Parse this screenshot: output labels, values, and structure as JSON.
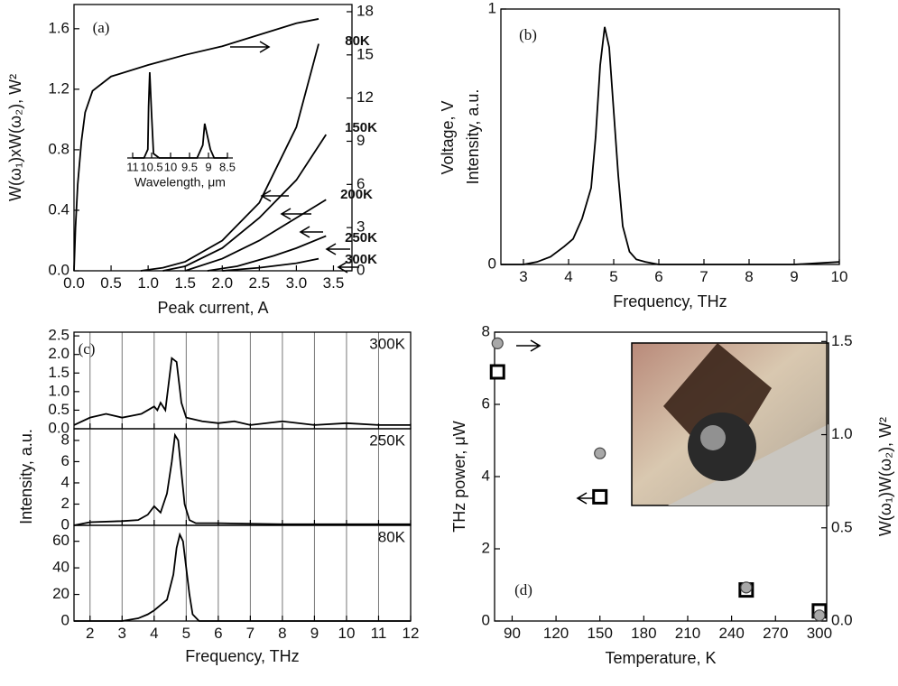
{
  "chart_data": [
    {
      "type": "line",
      "label": "(a)",
      "xlabel": "Peak current, A",
      "ylabel": "W(ω₁)xW(ω₂), W²",
      "y2label": "Voltage, V",
      "xlim": [
        0,
        3.75
      ],
      "xticks": [
        {
          "value": 0,
          "label": "0.0"
        },
        0.5,
        {
          "value": 1,
          "label": "1.0"
        },
        1.5,
        {
          "value": 2,
          "label": "2.0"
        },
        2.5,
        {
          "value": 3,
          "label": "3.0"
        },
        3.5
      ],
      "ylim": [
        0,
        1.76
      ],
      "yticks": [
        {
          "value": 0,
          "label": "0.0"
        },
        0.4,
        0.8,
        1.2,
        1.6
      ],
      "y2lim": [
        0,
        18.5
      ],
      "y2ticks": [
        0,
        3,
        6,
        9,
        12,
        15,
        18
      ],
      "series": [
        {
          "axis": "y2",
          "x": [
            0,
            0.02,
            0.05,
            0.1,
            0.15,
            0.25,
            0.5,
            1,
            1.5,
            2,
            2.5,
            3,
            3.3
          ],
          "values": [
            0,
            3,
            6,
            9,
            11,
            12.5,
            13.5,
            14.3,
            15,
            15.6,
            16.4,
            17.2,
            17.5
          ]
        },
        {
          "name": "80K",
          "x": [
            0.9,
            1.2,
            1.5,
            2.0,
            2.5,
            3.0,
            3.3
          ],
          "values": [
            0,
            0.02,
            0.06,
            0.2,
            0.45,
            0.95,
            1.5
          ]
        },
        {
          "name": "150K",
          "x": [
            1.2,
            1.5,
            2.0,
            2.5,
            3.0,
            3.4
          ],
          "values": [
            0,
            0.03,
            0.15,
            0.35,
            0.6,
            0.9
          ]
        },
        {
          "name": "200K",
          "x": [
            1.5,
            2.0,
            2.5,
            3.0,
            3.4
          ],
          "values": [
            0,
            0.08,
            0.2,
            0.35,
            0.47
          ]
        },
        {
          "name": "250K",
          "x": [
            1.8,
            2.2,
            2.7,
            3.0,
            3.4
          ],
          "values": [
            0,
            0.03,
            0.1,
            0.15,
            0.23
          ]
        },
        {
          "name": "300K",
          "x": [
            2.0,
            2.5,
            3.0,
            3.3
          ],
          "values": [
            0,
            0.02,
            0.05,
            0.08
          ]
        }
      ]
    },
    {
      "type": "line",
      "xlabel": "Wavelength, μm",
      "xlim": [
        11,
        8.5
      ],
      "xticks": [
        11,
        10.5,
        10,
        9.5,
        9,
        8.5
      ],
      "ylim": [
        0,
        1
      ],
      "x": [
        11,
        10.7,
        10.6,
        10.58,
        10.55,
        10.52,
        10.5,
        10.45,
        10.3,
        9.3,
        9.15,
        9.1,
        9.05,
        9.0,
        8.95,
        8.85,
        8.5
      ],
      "values": [
        0,
        0,
        0.1,
        0.6,
        1,
        0.7,
        0.5,
        0.05,
        0,
        0,
        0.15,
        0.4,
        0.3,
        0.2,
        0.1,
        0,
        0
      ]
    },
    {
      "type": "line",
      "label": "(b)",
      "xlabel": "Frequency, THz",
      "ylabel": "Intensity, a.u.",
      "xlim": [
        2.5,
        10
      ],
      "xticks": [
        3,
        4,
        5,
        6,
        7,
        8,
        9,
        10
      ],
      "ylim": [
        0,
        1
      ],
      "yticks": [
        0,
        1
      ],
      "x": [
        2.5,
        3,
        3.3,
        3.6,
        3.9,
        4.1,
        4.3,
        4.5,
        4.6,
        4.7,
        4.8,
        4.9,
        5.0,
        5.1,
        5.2,
        5.35,
        5.5,
        5.7,
        6,
        7,
        8,
        9,
        10
      ],
      "values": [
        0,
        0,
        0.01,
        0.03,
        0.07,
        0.1,
        0.18,
        0.3,
        0.5,
        0.78,
        0.93,
        0.85,
        0.6,
        0.35,
        0.15,
        0.05,
        0.02,
        0.01,
        0,
        0,
        0,
        0,
        0.01
      ]
    },
    {
      "type": "line",
      "label": "(c)",
      "title": "300K",
      "xlim": [
        1.5,
        12
      ],
      "xgrid": true,
      "ylim": [
        0,
        2.6
      ],
      "yticks": [
        {
          "value": 0,
          "label": "0.0"
        },
        0.5,
        {
          "value": 1,
          "label": "1.0"
        },
        1.5,
        {
          "value": 2,
          "label": "2.0"
        },
        2.5
      ],
      "x": [
        1.5,
        2,
        2.5,
        3,
        3.3,
        3.6,
        3.8,
        4,
        4.1,
        4.2,
        4.35,
        4.45,
        4.55,
        4.7,
        4.85,
        5,
        5.5,
        6,
        6.5,
        7,
        8,
        9,
        10,
        11,
        12
      ],
      "values": [
        0.1,
        0.3,
        0.4,
        0.3,
        0.35,
        0.4,
        0.5,
        0.6,
        0.5,
        0.7,
        0.5,
        1.2,
        1.9,
        1.8,
        0.7,
        0.3,
        0.2,
        0.15,
        0.2,
        0.1,
        0.2,
        0.1,
        0.15,
        0.1,
        0.1
      ]
    },
    {
      "type": "line",
      "title": "250K",
      "ylabel": "Intensity, a.u.",
      "xlim": [
        1.5,
        12
      ],
      "xgrid": true,
      "ylim": [
        0,
        9.1
      ],
      "yticks": [
        0,
        2,
        4,
        6,
        8
      ],
      "x": [
        1.5,
        2,
        3,
        3.5,
        3.8,
        4,
        4.2,
        4.4,
        4.55,
        4.65,
        4.75,
        4.85,
        4.95,
        5.1,
        5.3,
        6,
        8,
        10,
        12
      ],
      "values": [
        0,
        0.3,
        0.4,
        0.5,
        1.0,
        1.8,
        1.2,
        3,
        6,
        8.5,
        8,
        5,
        2,
        0.5,
        0.2,
        0.2,
        0.1,
        0.1,
        0.1
      ]
    },
    {
      "type": "line",
      "title": "80K",
      "xlabel": "Frequency, THz",
      "xlim": [
        1.5,
        12
      ],
      "xgrid": true,
      "xticks": [
        2,
        3,
        4,
        5,
        6,
        7,
        8,
        9,
        10,
        11,
        12
      ],
      "ylim": [
        0,
        72
      ],
      "yticks": [
        0,
        20,
        40,
        60
      ],
      "x": [
        1.5,
        3,
        3.5,
        3.8,
        4,
        4.2,
        4.4,
        4.6,
        4.7,
        4.8,
        4.9,
        5.0,
        5.1,
        5.2,
        5.4,
        6,
        12
      ],
      "values": [
        0,
        0,
        2,
        5,
        8,
        12,
        16,
        35,
        55,
        65,
        60,
        40,
        20,
        5,
        0,
        0,
        0
      ]
    },
    {
      "type": "scatter",
      "label": "(d)",
      "xlabel": "Temperature, K",
      "ylabel": "THz power, μW",
      "y2label": "W(ω₁)W(ω₂), W²",
      "xlim": [
        78,
        305
      ],
      "xticks": [
        90,
        120,
        150,
        180,
        210,
        240,
        270,
        300
      ],
      "ylim": [
        0,
        8
      ],
      "yticks": [
        0,
        2,
        4,
        6,
        8
      ],
      "y2lim": [
        0,
        1.55
      ],
      "y2ticks": [
        {
          "value": 0,
          "label": "0.0"
        },
        0.5,
        {
          "value": 1,
          "label": "1.0"
        },
        1.5
      ],
      "series": [
        {
          "marker": "square",
          "color": "#ffffff",
          "x": [
            80,
            150,
            250,
            300
          ],
          "values": [
            6.9,
            3.44,
            0.86,
            0.28
          ]
        },
        {
          "marker": "circle",
          "color": "#a8a8a8",
          "axis": "y2",
          "x": [
            80,
            150,
            250,
            300
          ],
          "values": [
            1.49,
            0.9,
            0.18,
            0.03
          ]
        }
      ]
    }
  ]
}
